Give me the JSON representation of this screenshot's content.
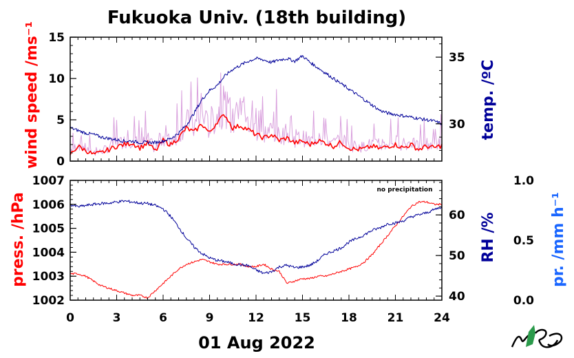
{
  "colors": {
    "wind": "#ff0000",
    "wind_raw": "#d9a0dd",
    "temp": "#000099",
    "press": "#ff0000",
    "rh": "#000099",
    "precip": "#1a66ff",
    "frame": "#000000"
  },
  "chart_data": [
    {
      "type": "line",
      "title": "Fukuoka Univ. (18th building)",
      "ylabel": "wind speed /ms⁻¹",
      "y2label": "temp. /ºC",
      "xlim": [
        0,
        24
      ],
      "ylim": [
        0,
        15
      ],
      "y2lim": [
        27.2,
        36.5
      ],
      "yticks": [
        "0",
        "5",
        "10",
        "15"
      ],
      "y2ticks": [
        "30",
        "35"
      ],
      "series": [
        {
          "axis": "left",
          "role": "wind_mean",
          "x": [
            0,
            0.5,
            1,
            1.5,
            2,
            2.5,
            3,
            3.5,
            4,
            4.5,
            5,
            5.5,
            6,
            6.5,
            7,
            7.5,
            8,
            8.5,
            9,
            9.5,
            10,
            10.5,
            11,
            11.5,
            12,
            12.5,
            13,
            13.5,
            14,
            14.5,
            15,
            15.5,
            16,
            16.5,
            17,
            17.5,
            18,
            18.5,
            19,
            19.5,
            20,
            20.5,
            21,
            21.5,
            22,
            22.5,
            23,
            23.5,
            24
          ],
          "values": [
            0.8,
            1.8,
            1.3,
            0.8,
            1.0,
            1.4,
            1.8,
            2.0,
            2.2,
            1.6,
            2.2,
            1.2,
            2.5,
            2.0,
            2.8,
            4.0,
            3.5,
            4.5,
            3.4,
            4.8,
            5.6,
            4.0,
            4.3,
            3.8,
            3.2,
            2.8,
            3.2,
            2.5,
            2.8,
            2.2,
            2.4,
            2.0,
            2.5,
            2.2,
            1.8,
            2.3,
            1.6,
            1.4,
            1.5,
            1.8,
            1.5,
            1.8,
            2.0,
            1.6,
            2.0,
            1.4,
            1.8,
            1.6,
            1.9
          ]
        },
        {
          "axis": "right",
          "role": "temperature",
          "x": [
            0,
            0.5,
            1,
            1.5,
            2,
            2.5,
            3,
            3.5,
            4,
            4.5,
            5,
            5.5,
            6,
            6.5,
            7,
            7.5,
            8,
            8.5,
            9,
            9.5,
            10,
            10.5,
            11,
            11.5,
            12,
            12.5,
            13,
            13.5,
            14,
            14.5,
            15,
            15.5,
            16,
            16.5,
            17,
            17.5,
            18,
            18.5,
            19,
            19.5,
            20,
            20.5,
            21,
            21.5,
            22,
            22.5,
            23,
            23.5,
            24
          ],
          "values": [
            29.7,
            29.5,
            29.3,
            29.2,
            29.0,
            28.9,
            28.8,
            28.7,
            28.7,
            28.6,
            28.6,
            28.6,
            28.7,
            28.9,
            29.3,
            29.9,
            30.8,
            31.8,
            32.5,
            32.9,
            33.6,
            34.1,
            34.4,
            34.7,
            34.9,
            34.8,
            34.6,
            34.8,
            34.9,
            34.7,
            35.1,
            34.6,
            34.2,
            33.8,
            33.4,
            33.0,
            32.6,
            32.2,
            31.8,
            31.4,
            31.0,
            30.8,
            30.7,
            30.6,
            30.5,
            30.4,
            30.3,
            30.2,
            30.0
          ]
        }
      ]
    },
    {
      "type": "line",
      "ylabel": "press. /hPa",
      "y2label": "RH /%",
      "y3label": "pr. /mm h⁻¹",
      "xlabel": "01 Aug 2022",
      "annotation": "no precipitation",
      "xlim": [
        0,
        24
      ],
      "xticks": [
        "0",
        "3",
        "6",
        "9",
        "12",
        "15",
        "18",
        "21",
        "24"
      ],
      "ylim": [
        1002,
        1007
      ],
      "yticks": [
        "1002",
        "1003",
        "1004",
        "1005",
        "1006",
        "1007"
      ],
      "y2lim": [
        39,
        68.5
      ],
      "y2ticks": [
        "40",
        "50",
        "60"
      ],
      "y3lim": [
        0,
        1
      ],
      "y3ticks": [
        "0.0",
        "0.5",
        "1.0"
      ],
      "series": [
        {
          "axis": "left",
          "role": "pressure",
          "x": [
            0,
            0.5,
            1,
            1.5,
            2,
            2.5,
            3,
            3.5,
            4,
            4.5,
            5,
            5.5,
            6,
            6.5,
            7,
            7.5,
            8,
            8.5,
            9,
            9.5,
            10,
            10.5,
            11,
            11.5,
            12,
            12.5,
            13,
            13.5,
            14,
            14.5,
            15,
            15.5,
            16,
            16.5,
            17,
            17.5,
            18,
            18.5,
            19,
            19.5,
            20,
            20.5,
            21,
            21.5,
            22,
            22.5,
            23,
            23.5,
            24
          ],
          "values": [
            1003.1,
            1003.1,
            1003.0,
            1002.8,
            1002.6,
            1002.5,
            1002.4,
            1002.3,
            1002.2,
            1002.2,
            1002.1,
            1002.4,
            1002.7,
            1003.0,
            1003.3,
            1003.5,
            1003.6,
            1003.7,
            1003.6,
            1003.5,
            1003.5,
            1003.5,
            1003.5,
            1003.4,
            1003.4,
            1003.5,
            1003.3,
            1003.2,
            1002.7,
            1002.8,
            1002.9,
            1002.9,
            1003.0,
            1003.0,
            1003.1,
            1003.2,
            1003.3,
            1003.4,
            1003.6,
            1003.9,
            1004.3,
            1004.7,
            1005.1,
            1005.5,
            1005.9,
            1006.1,
            1006.1,
            1006.0,
            1006.0
          ]
        },
        {
          "axis": "right",
          "role": "relative_humidity",
          "x": [
            0,
            0.5,
            1,
            1.5,
            2,
            2.5,
            3,
            3.5,
            4,
            4.5,
            5,
            5.5,
            6,
            6.5,
            7,
            7.5,
            8,
            8.5,
            9,
            9.5,
            10,
            10.5,
            11,
            11.5,
            12,
            12.5,
            13,
            13.5,
            14,
            14.5,
            15,
            15.5,
            16,
            16.5,
            17,
            17.5,
            18,
            18.5,
            19,
            19.5,
            20,
            20.5,
            21,
            21.5,
            22,
            22.5,
            23,
            23.5,
            24
          ],
          "values": [
            62.5,
            62.0,
            62.3,
            62.6,
            62.8,
            62.9,
            63.2,
            63.4,
            63.2,
            62.9,
            62.8,
            62.3,
            61.5,
            59.6,
            57.0,
            54.3,
            52.1,
            50.5,
            49.4,
            48.8,
            48.5,
            48.0,
            47.7,
            47.5,
            46.4,
            45.6,
            46.0,
            47.2,
            47.6,
            47.0,
            47.2,
            47.6,
            48.8,
            50.4,
            51.1,
            51.9,
            53.3,
            54.2,
            55.1,
            56.2,
            56.8,
            57.8,
            58.0,
            58.5,
            59.5,
            60.0,
            60.5,
            61.3,
            62.0
          ]
        },
        {
          "axis": "right2",
          "role": "precipitation",
          "x": [
            0,
            24
          ],
          "values": [
            0,
            0
          ]
        }
      ]
    }
  ],
  "logo": {
    "text": "MES"
  }
}
